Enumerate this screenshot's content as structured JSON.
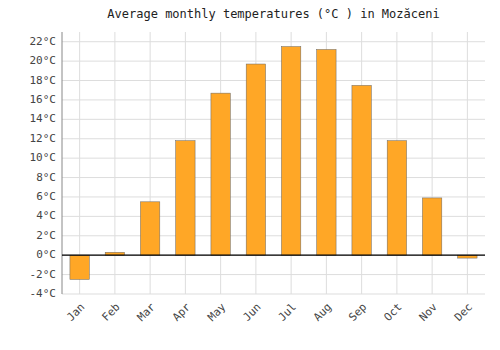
{
  "chart_data": {
    "type": "bar",
    "title": "Average monthly temperatures (°C ) in Mozăceni",
    "categories": [
      "Jan",
      "Feb",
      "Mar",
      "Apr",
      "May",
      "Jun",
      "Jul",
      "Aug",
      "Sep",
      "Oct",
      "Nov",
      "Dec"
    ],
    "values": [
      -2.5,
      0.3,
      5.5,
      11.8,
      16.7,
      19.7,
      21.5,
      21.2,
      17.5,
      11.8,
      5.9,
      -0.3
    ],
    "color": "#FFA726",
    "ylim": [
      -4,
      23
    ],
    "yticks": [
      {
        "value": -4,
        "label": "-4°C"
      },
      {
        "value": -2,
        "label": "-2°C"
      },
      {
        "value": 0,
        "label": "0°C"
      },
      {
        "value": 2,
        "label": "2°C"
      },
      {
        "value": 4,
        "label": "4°C"
      },
      {
        "value": 6,
        "label": "6°C"
      },
      {
        "value": 8,
        "label": "8°C"
      },
      {
        "value": 10,
        "label": "10°C"
      },
      {
        "value": 12,
        "label": "12°C"
      },
      {
        "value": 14,
        "label": "14°C"
      },
      {
        "value": 16,
        "label": "16°C"
      },
      {
        "value": 18,
        "label": "18°C"
      },
      {
        "value": 20,
        "label": "20°C"
      },
      {
        "value": 22,
        "label": "22°C"
      }
    ],
    "grid": true
  }
}
